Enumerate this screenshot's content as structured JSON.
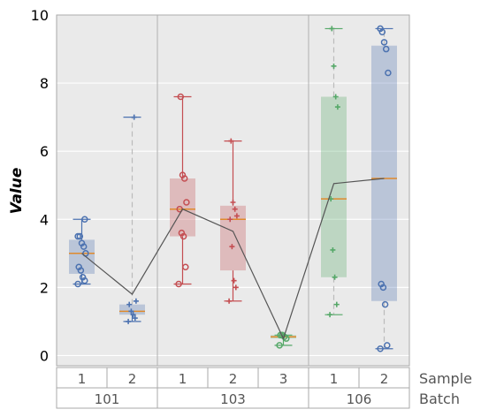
{
  "chart_data": {
    "type": "box",
    "ylabel": "Value",
    "ylim": [
      -0.3,
      10
    ],
    "yticks": [
      0,
      2,
      4,
      6,
      8,
      10
    ],
    "grid": true,
    "row_labels": {
      "sample": "Sample",
      "batch": "Batch"
    },
    "groups": [
      {
        "batch": "101",
        "samples": [
          {
            "name": "1",
            "color": "#4C72B0",
            "marker": "circle",
            "box_style": "wide",
            "q1": 2.4,
            "median": 3.0,
            "q3": 3.4,
            "min": 2.1,
            "max": 4.0,
            "mean": 3.0,
            "points": [
              2.1,
              2.2,
              2.3,
              2.5,
              2.6,
              3.0,
              3.2,
              3.3,
              3.5,
              3.5,
              4.0
            ]
          },
          {
            "name": "2",
            "color": "#4C72B0",
            "marker": "plus",
            "box_style": "wide",
            "q1": 1.2,
            "median": 1.3,
            "q3": 1.5,
            "min": 1.0,
            "max": 7.0,
            "mean": 1.8,
            "points": [
              1.0,
              1.1,
              1.2,
              1.3,
              1.5,
              1.6,
              7.0
            ]
          }
        ]
      },
      {
        "batch": "103",
        "samples": [
          {
            "name": "1",
            "color": "#C44E52",
            "marker": "circle",
            "box_style": "wide",
            "q1": 3.5,
            "median": 4.3,
            "q3": 5.2,
            "min": 2.1,
            "max": 7.6,
            "mean": 4.3,
            "points": [
              2.1,
              2.6,
              3.5,
              3.6,
              4.3,
              4.5,
              5.2,
              5.3,
              7.6
            ]
          },
          {
            "name": "2",
            "color": "#C44E52",
            "marker": "plus",
            "box_style": "wide",
            "q1": 2.5,
            "median": 4.0,
            "q3": 4.4,
            "min": 1.6,
            "max": 6.3,
            "mean": 3.65,
            "points": [
              1.6,
              2.0,
              2.2,
              3.2,
              4.0,
              4.1,
              4.3,
              4.5,
              6.3
            ]
          },
          {
            "name": "3",
            "color": "#55A868",
            "marker": "circle",
            "box_style": "wide",
            "q1": 0.5,
            "median": 0.55,
            "q3": 0.6,
            "min": 0.3,
            "max": 0.6,
            "mean": 0.5,
            "points": [
              0.3,
              0.5,
              0.55,
              0.6,
              0.6
            ]
          }
        ]
      },
      {
        "batch": "106",
        "samples": [
          {
            "name": "1",
            "color": "#55A868",
            "marker": "plus",
            "box_style": "wide",
            "q1": 2.3,
            "median": 4.6,
            "q3": 7.6,
            "min": 1.2,
            "max": 9.6,
            "mean": 5.05,
            "points": [
              1.2,
              1.5,
              2.3,
              3.1,
              4.6,
              7.3,
              7.6,
              8.5,
              9.6
            ]
          },
          {
            "name": "2",
            "color": "#4C72B0",
            "marker": "circle",
            "box_style": "wide",
            "q1": 1.6,
            "median": 5.2,
            "q3": 9.1,
            "min": 0.2,
            "max": 9.6,
            "mean": 5.2,
            "points": [
              0.2,
              0.3,
              1.5,
              2.0,
              2.1,
              8.3,
              9.0,
              9.2,
              9.5,
              9.6
            ]
          }
        ]
      }
    ],
    "mean_line_color": "#555555",
    "median_color": "#E08A2C",
    "plot_bg": "#EAEAEA",
    "grid_color": "#FFFFFF"
  }
}
